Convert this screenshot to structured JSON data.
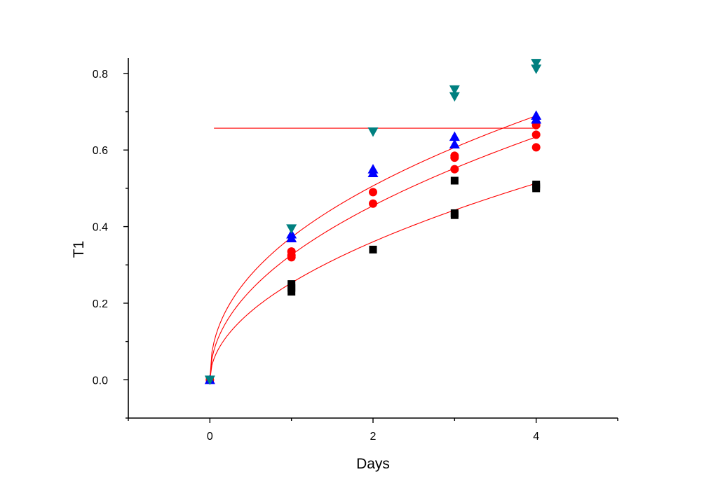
{
  "chart_data": {
    "type": "scatter",
    "xlabel": "Days",
    "ylabel": "T1",
    "xlim": [
      -1,
      5
    ],
    "ylim": [
      -0.1,
      0.84
    ],
    "x_ticks": [
      0,
      2,
      4
    ],
    "x_tick_labels": [
      "0",
      "2",
      "4"
    ],
    "x_minor_ticks": [
      -1,
      1,
      3,
      5
    ],
    "y_ticks": [
      0.0,
      0.2,
      0.4,
      0.6,
      0.8
    ],
    "y_tick_labels": [
      "0.0",
      "0.2",
      "0.4",
      "0.6",
      "0.8"
    ],
    "y_minor_ticks": [
      -0.1,
      0.1,
      0.3,
      0.5,
      0.7
    ],
    "grid": false,
    "legend": "none",
    "series": [
      {
        "marker": "square",
        "color": "#000000",
        "points": [
          [
            0,
            0.0
          ],
          [
            1,
            0.25
          ],
          [
            1,
            0.24
          ],
          [
            1,
            0.23
          ],
          [
            2,
            0.34
          ],
          [
            3,
            0.52
          ],
          [
            3,
            0.435
          ],
          [
            3,
            0.43
          ],
          [
            4,
            0.51
          ],
          [
            4,
            0.505
          ],
          [
            4,
            0.5
          ]
        ]
      },
      {
        "marker": "circle",
        "color": "#ff0000",
        "points": [
          [
            0,
            0.0
          ],
          [
            1,
            0.335
          ],
          [
            1,
            0.325
          ],
          [
            1,
            0.32
          ],
          [
            2,
            0.49
          ],
          [
            2,
            0.46
          ],
          [
            3,
            0.585
          ],
          [
            3,
            0.58
          ],
          [
            3,
            0.55
          ],
          [
            4,
            0.665
          ],
          [
            4,
            0.64
          ],
          [
            4,
            0.607
          ]
        ]
      },
      {
        "marker": "triangle-up",
        "color": "#0000ff",
        "points": [
          [
            0,
            0.0
          ],
          [
            1,
            0.38
          ],
          [
            1,
            0.37
          ],
          [
            2,
            0.55
          ],
          [
            2,
            0.54
          ],
          [
            3,
            0.635
          ],
          [
            3,
            0.615
          ],
          [
            4,
            0.69
          ],
          [
            4,
            0.68
          ]
        ]
      },
      {
        "marker": "triangle-down",
        "color": "#008080",
        "points": [
          [
            0,
            0.0
          ],
          [
            1,
            0.395
          ],
          [
            2,
            0.648
          ],
          [
            3,
            0.758
          ],
          [
            3,
            0.74
          ],
          [
            4,
            0.827
          ],
          [
            4,
            0.812
          ]
        ]
      }
    ],
    "fit_curves": [
      {
        "color": "#ff0000",
        "form": "power",
        "a": 0.253,
        "b": 0.51
      },
      {
        "color": "#ff0000",
        "form": "power",
        "a": 0.326,
        "b": 0.48
      },
      {
        "color": "#ff0000",
        "form": "power",
        "a": 0.372,
        "b": 0.445
      },
      {
        "color": "#ff0000",
        "form": "horizontal",
        "x_from": 0.05,
        "x_to": 4,
        "y": 0.657
      }
    ]
  }
}
